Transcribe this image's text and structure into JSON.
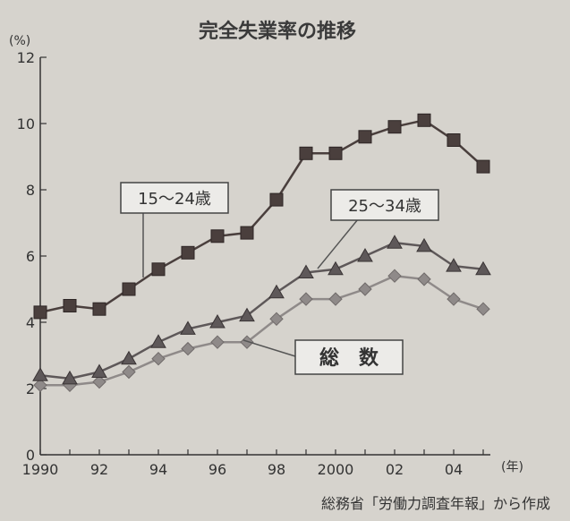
{
  "chart_data": {
    "type": "line",
    "title": "完全失業率の推移",
    "y_unit": "(%)",
    "x_unit": "(年)",
    "source": "総務省「労働力調査年報」から作成",
    "xlim": [
      1990,
      2005
    ],
    "ylim": [
      0,
      12
    ],
    "x": [
      1990,
      1991,
      1992,
      1993,
      1994,
      1995,
      1996,
      1997,
      1998,
      1999,
      2000,
      2001,
      2002,
      2003,
      2004,
      2005
    ],
    "x_tick_values": [
      1990,
      1992,
      1994,
      1996,
      1998,
      2000,
      2002,
      2004
    ],
    "x_tick_labels": [
      "1990",
      "92",
      "94",
      "96",
      "98",
      "2000",
      "02",
      "04"
    ],
    "y_ticks": [
      0,
      2,
      4,
      6,
      8,
      10,
      12
    ],
    "grid": false,
    "series": [
      {
        "name": "15～24歳",
        "marker": "square",
        "color": "#4a3f3d",
        "values": [
          4.3,
          4.5,
          4.4,
          5.0,
          5.6,
          6.1,
          6.6,
          6.7,
          7.7,
          9.1,
          9.1,
          9.6,
          9.9,
          10.1,
          9.5,
          8.7
        ]
      },
      {
        "name": "25～34歳",
        "marker": "triangle",
        "color": "#5e5859",
        "values": [
          2.4,
          2.3,
          2.5,
          2.9,
          3.4,
          3.8,
          4.0,
          4.2,
          4.9,
          5.5,
          5.6,
          6.0,
          6.4,
          6.3,
          5.7,
          5.6
        ]
      },
      {
        "name": "総　数",
        "marker": "diamond",
        "color": "#8f8a89",
        "values": [
          2.1,
          2.1,
          2.2,
          2.5,
          2.9,
          3.2,
          3.4,
          3.4,
          4.1,
          4.7,
          4.7,
          5.0,
          5.4,
          5.3,
          4.7,
          4.4
        ]
      }
    ]
  }
}
